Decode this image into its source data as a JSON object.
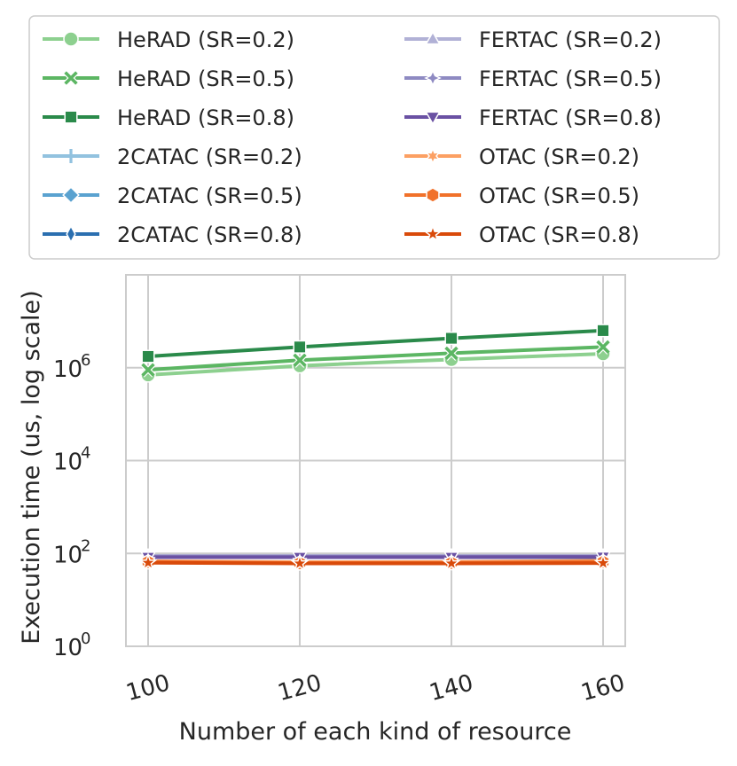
{
  "chart_data": {
    "type": "line",
    "title": "",
    "xlabel": "Number of each kind of resource",
    "ylabel": "Execution time (us, log scale)",
    "x": [
      100,
      120,
      140,
      160
    ],
    "xticks": [
      "100",
      "120",
      "140",
      "160"
    ],
    "yscale": "log",
    "ylim": [
      1,
      100000000
    ],
    "yticks": [
      {
        "value": 1,
        "base": "10",
        "exp": "0"
      },
      {
        "value": 100,
        "base": "10",
        "exp": "2"
      },
      {
        "value": 10000,
        "base": "10",
        "exp": "4"
      },
      {
        "value": 1000000,
        "base": "10",
        "exp": "6"
      }
    ],
    "grid": true,
    "legend_position": "top",
    "series": [
      {
        "name": "HeRAD (SR=0.2)",
        "color": "#8dd08f",
        "marker": "circle",
        "values": [
          700000,
          1100000,
          1500000,
          2000000
        ]
      },
      {
        "name": "HeRAD (SR=0.5)",
        "color": "#5cb663",
        "marker": "x",
        "values": [
          900000,
          1450000,
          2050000,
          2800000
        ]
      },
      {
        "name": "HeRAD (SR=0.8)",
        "color": "#2a8a4a",
        "marker": "square",
        "values": [
          1750000,
          2800000,
          4300000,
          6300000
        ]
      },
      {
        "name": "2CATAC (SR=0.2)",
        "color": "#92c2df",
        "marker": "plus",
        "values": [
          85,
          85,
          85,
          85
        ]
      },
      {
        "name": "2CATAC (SR=0.5)",
        "color": "#5aa2d0",
        "marker": "diamond",
        "values": [
          84,
          84,
          84,
          84
        ]
      },
      {
        "name": "2CATAC (SR=0.8)",
        "color": "#2b6fb0",
        "marker": "thin-diamond",
        "values": [
          83,
          83,
          83,
          83
        ]
      },
      {
        "name": "FERTAC (SR=0.2)",
        "color": "#b1b1d6",
        "marker": "triangle-up",
        "values": [
          88,
          88,
          88,
          88
        ]
      },
      {
        "name": "FERTAC (SR=0.5)",
        "color": "#8e8ac2",
        "marker": "star4",
        "values": [
          86,
          86,
          86,
          86
        ]
      },
      {
        "name": "FERTAC (SR=0.8)",
        "color": "#6a51a3",
        "marker": "triangle-down",
        "values": [
          83,
          83,
          83,
          84
        ]
      },
      {
        "name": "OTAC (SR=0.2)",
        "color": "#fca063",
        "marker": "star6",
        "values": [
          68,
          65,
          66,
          70
        ]
      },
      {
        "name": "OTAC (SR=0.5)",
        "color": "#f1712a",
        "marker": "hexagon",
        "values": [
          66,
          62,
          63,
          66
        ]
      },
      {
        "name": "OTAC (SR=0.8)",
        "color": "#d94a0a",
        "marker": "star5",
        "values": [
          63,
          61,
          61,
          62
        ]
      }
    ]
  }
}
